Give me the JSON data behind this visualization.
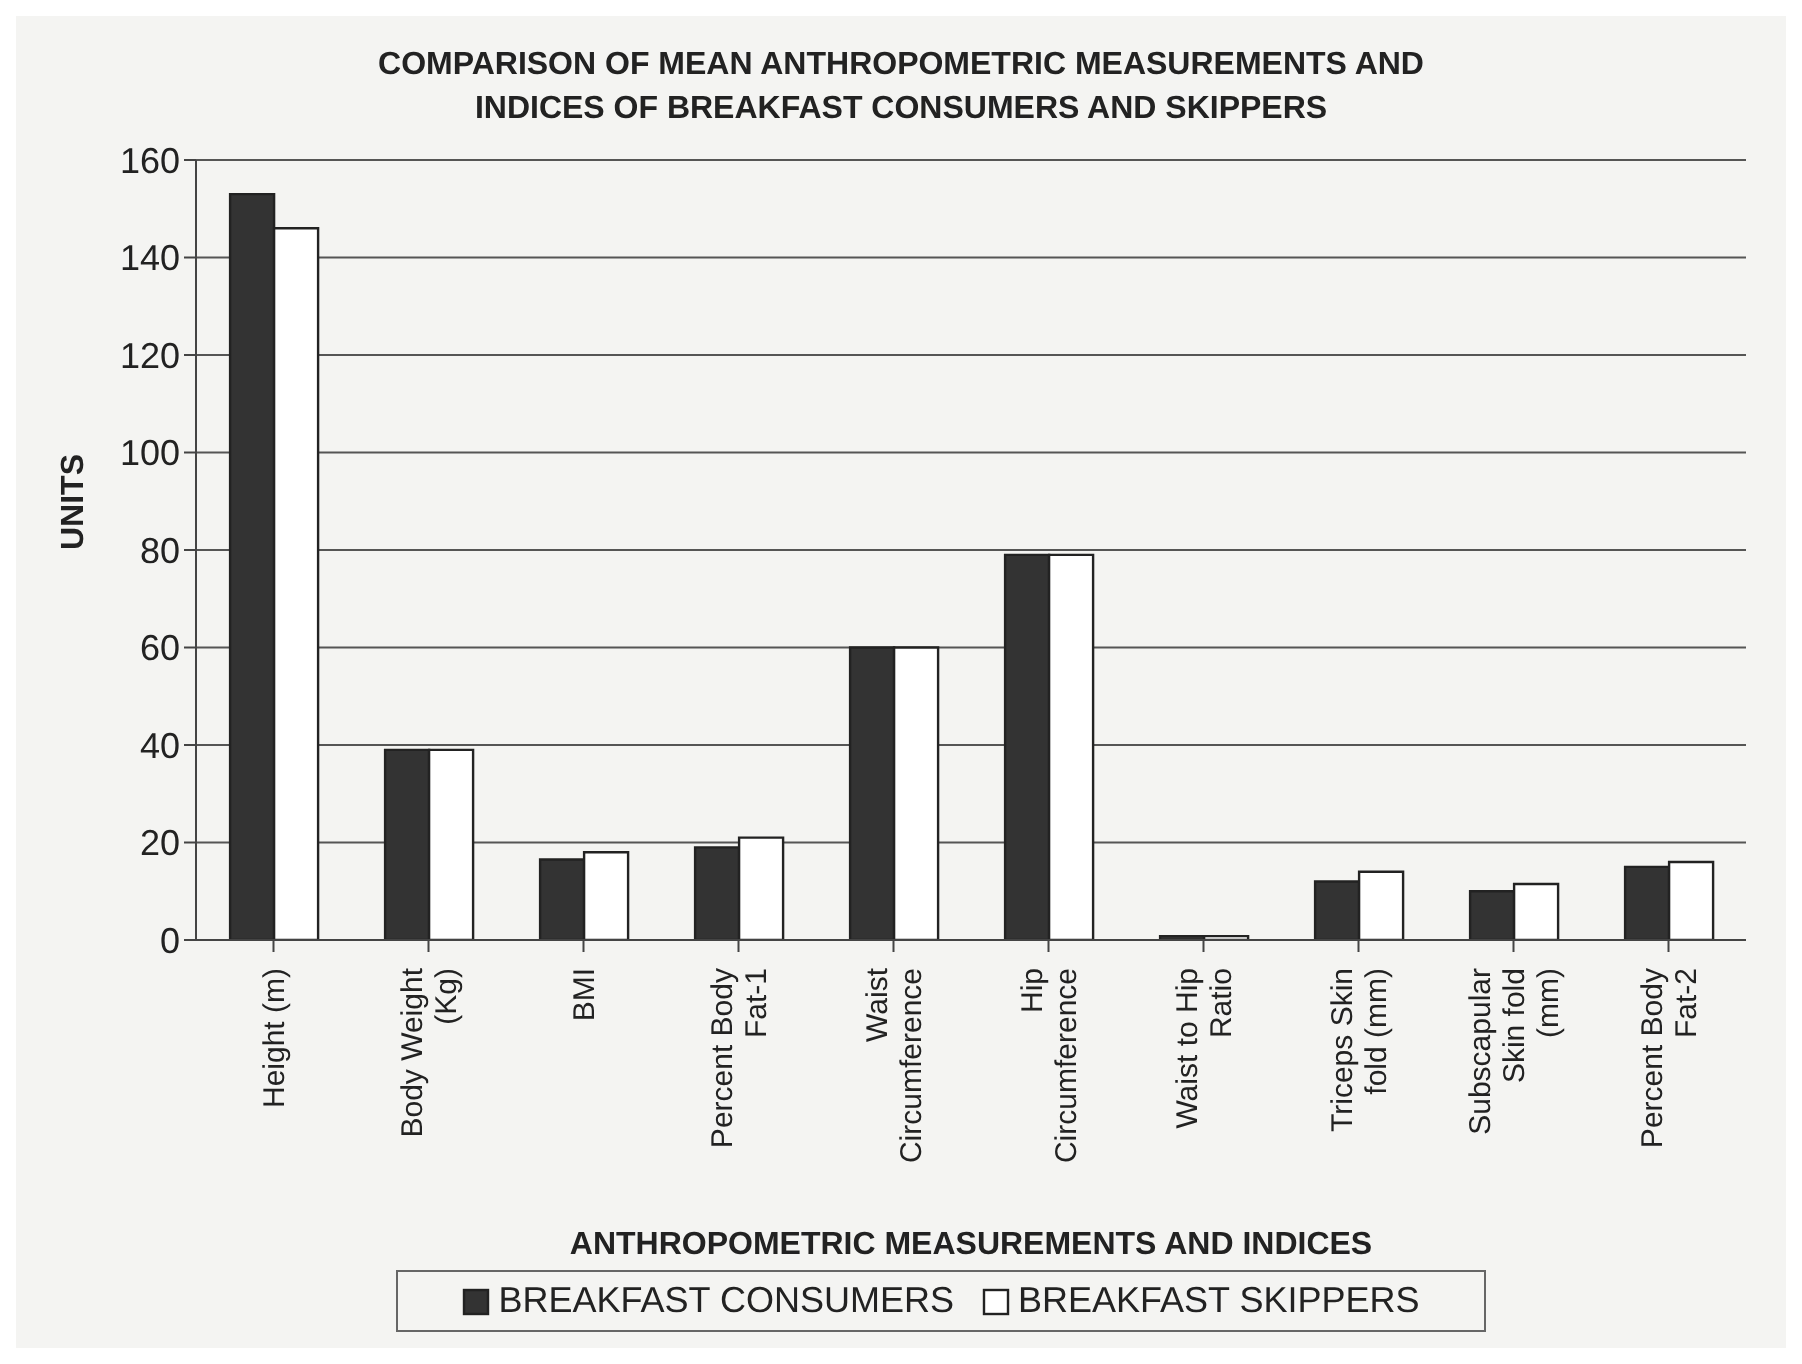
{
  "chart_data": {
    "type": "bar",
    "title": "COMPARISON OF MEAN ANTHROPOMETRIC MEASUREMENTS AND INDICES OF BREAKFAST CONSUMERS AND SKIPPERS",
    "xlabel": "ANTHROPOMETRIC MEASUREMENTS AND INDICES",
    "ylabel": "UNITS",
    "categories": [
      "Height (m)",
      "Body Weight (Kg)",
      "BMI",
      "Percent Body Fat-1",
      "Waist Circumference",
      "Hip Circumference",
      "Waist to Hip Ratio",
      "Triceps Skin fold (mm)",
      "Subscapular Skin fold (mm)",
      "Percent Body Fat-2"
    ],
    "series": [
      {
        "name": "BREAKFAST CONSUMERS",
        "color": "#333333",
        "values": [
          153,
          39,
          16.5,
          19,
          60,
          79,
          0.8,
          12,
          10,
          15
        ]
      },
      {
        "name": "BREAKFAST SKIPPERS",
        "color": "#ffffff",
        "values": [
          146,
          39,
          18,
          21,
          60,
          79,
          0.8,
          14,
          11.5,
          16
        ]
      }
    ],
    "ylim": [
      0,
      160
    ],
    "yticks": [
      0,
      20,
      40,
      60,
      80,
      100,
      120,
      140,
      160
    ],
    "grid": "y",
    "legend": "bottom"
  }
}
